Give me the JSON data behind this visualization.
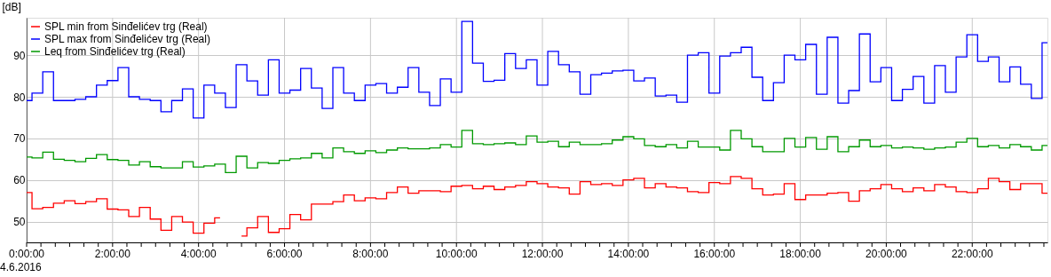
{
  "chart_data": {
    "type": "step",
    "ylabel": "[dB]",
    "x": [
      0,
      0.25,
      0.5,
      0.75,
      1,
      1.25,
      1.5,
      1.75,
      2,
      2.25,
      2.5,
      2.75,
      3,
      3.25,
      3.5,
      3.75,
      4,
      4.25,
      4.5,
      4.75,
      5,
      5.25,
      5.5,
      5.75,
      6,
      6.25,
      6.5,
      6.75,
      7,
      7.25,
      7.5,
      7.75,
      8,
      8.25,
      8.5,
      8.75,
      9,
      9.25,
      9.5,
      9.75,
      10,
      10.25,
      10.5,
      10.75,
      11,
      11.25,
      11.5,
      11.75,
      12,
      12.25,
      12.5,
      12.75,
      13,
      13.25,
      13.5,
      13.75,
      14,
      14.25,
      14.5,
      14.75,
      15,
      15.25,
      15.5,
      15.75,
      16,
      16.25,
      16.5,
      16.75,
      17,
      17.25,
      17.5,
      17.75,
      18,
      18.25,
      18.5,
      18.75,
      19,
      19.25,
      19.5,
      19.75,
      20,
      20.25,
      20.5,
      20.75,
      21,
      21.25,
      21.5,
      21.75,
      22,
      22.25,
      22.5,
      22.75,
      23,
      23.25,
      23.5,
      23.75
    ],
    "series": [
      {
        "name": "SPL min from Sinđelićev trg (Real)",
        "color": "#ff0000",
        "values": [
          57.0,
          53.1,
          53.4,
          54.4,
          55.0,
          54.3,
          54.8,
          55.5,
          53.0,
          52.8,
          51.2,
          53.4,
          50.6,
          47.9,
          51.2,
          49.9,
          47.2,
          49.6,
          50.9,
          null,
          46.5,
          48.5,
          51.2,
          47.4,
          48.3,
          51.7,
          50.4,
          54.2,
          54.2,
          54.8,
          56.4,
          55.0,
          55.7,
          55.5,
          57.0,
          58.3,
          56.8,
          57.4,
          57.4,
          57.2,
          58.5,
          58.7,
          57.9,
          58.5,
          57.7,
          58.3,
          58.7,
          59.6,
          59.1,
          58.3,
          58.1,
          56.6,
          59.6,
          58.9,
          59.1,
          58.7,
          60.0,
          60.4,
          58.1,
          59.1,
          58.3,
          58.1,
          57.2,
          57.0,
          59.4,
          59.1,
          60.8,
          60.4,
          57.9,
          56.4,
          56.6,
          59.1,
          55.3,
          56.4,
          56.4,
          56.8,
          57.0,
          54.9,
          57.4,
          57.9,
          58.9,
          57.9,
          57.2,
          58.1,
          57.4,
          58.9,
          58.3,
          57.2,
          57.0,
          57.9,
          60.4,
          59.6,
          57.7,
          59.1,
          59.1,
          56.8
        ]
      },
      {
        "name": "SPL max from Sinđelićev trg (Real)",
        "color": "#0000ff",
        "values": [
          79.1,
          80.9,
          86.0,
          79.1,
          79.1,
          79.4,
          80.0,
          82.8,
          83.9,
          87.0,
          80.0,
          79.4,
          79.1,
          76.4,
          79.1,
          81.9,
          74.9,
          82.8,
          80.9,
          77.4,
          87.7,
          83.8,
          80.4,
          88.9,
          80.9,
          81.6,
          86.8,
          82.1,
          77.2,
          87.0,
          80.9,
          79.1,
          82.8,
          83.2,
          80.9,
          82.3,
          87.0,
          81.1,
          77.9,
          84.3,
          81.1,
          98.1,
          88.1,
          83.7,
          84.0,
          90.4,
          86.8,
          88.9,
          82.8,
          90.9,
          87.7,
          86.0,
          80.6,
          85.3,
          85.7,
          86.2,
          86.4,
          83.8,
          84.5,
          80.2,
          80.4,
          78.7,
          90.0,
          90.6,
          80.9,
          89.8,
          90.6,
          91.9,
          84.7,
          79.1,
          83.4,
          90.0,
          88.9,
          92.6,
          80.6,
          94.3,
          78.5,
          81.5,
          95.1,
          83.6,
          87.0,
          79.1,
          81.8,
          84.9,
          78.5,
          87.5,
          81.1,
          89.6,
          94.9,
          88.5,
          89.6,
          83.6,
          87.2,
          83.0,
          79.6,
          93.0
        ]
      },
      {
        "name": "Leq from Sinđelićev trg (Real)",
        "color": "#009900",
        "values": [
          65.5,
          65.3,
          66.7,
          65.0,
          64.7,
          64.4,
          65.2,
          66.1,
          64.9,
          64.7,
          63.6,
          64.4,
          63.2,
          62.9,
          62.9,
          64.4,
          63.1,
          63.4,
          63.8,
          61.8,
          65.7,
          62.9,
          64.2,
          64.0,
          64.7,
          65.1,
          65.3,
          66.4,
          65.3,
          67.7,
          66.8,
          66.4,
          67.0,
          66.6,
          67.2,
          67.7,
          67.5,
          67.5,
          67.7,
          68.5,
          67.9,
          71.9,
          68.7,
          68.5,
          68.7,
          68.9,
          68.5,
          70.6,
          69.1,
          69.3,
          68.0,
          69.1,
          68.5,
          68.5,
          68.7,
          69.6,
          70.4,
          69.9,
          68.3,
          68.0,
          68.5,
          67.7,
          69.3,
          67.9,
          67.9,
          67.2,
          71.9,
          69.9,
          68.0,
          66.8,
          66.8,
          70.0,
          67.9,
          70.2,
          67.4,
          70.4,
          66.8,
          68.0,
          69.6,
          68.0,
          68.3,
          67.7,
          67.9,
          67.7,
          67.4,
          67.7,
          67.9,
          69.1,
          70.0,
          68.0,
          68.3,
          67.7,
          68.5,
          68.0,
          67.2,
          68.3
        ]
      }
    ],
    "xlim": [
      0,
      23.75
    ],
    "xticks": [
      {
        "value": 0,
        "label": "0:00:00"
      },
      {
        "value": 0.333,
        "label": null
      },
      {
        "value": 0.667,
        "label": null
      },
      {
        "value": 1,
        "label": null
      },
      {
        "value": 1.333,
        "label": null
      },
      {
        "value": 1.667,
        "label": null
      },
      {
        "value": 2,
        "label": "2:00:00"
      },
      {
        "value": 2.333,
        "label": null
      },
      {
        "value": 2.667,
        "label": null
      },
      {
        "value": 3,
        "label": null
      },
      {
        "value": 3.333,
        "label": null
      },
      {
        "value": 3.667,
        "label": null
      },
      {
        "value": 4,
        "label": "4:00:00"
      },
      {
        "value": 4.333,
        "label": null
      },
      {
        "value": 4.667,
        "label": null
      },
      {
        "value": 5,
        "label": null
      },
      {
        "value": 5.333,
        "label": null
      },
      {
        "value": 5.667,
        "label": null
      },
      {
        "value": 6,
        "label": "6:00:00"
      },
      {
        "value": 6.333,
        "label": null
      },
      {
        "value": 6.667,
        "label": null
      },
      {
        "value": 7,
        "label": null
      },
      {
        "value": 7.333,
        "label": null
      },
      {
        "value": 7.667,
        "label": null
      },
      {
        "value": 8,
        "label": "8:00:00"
      },
      {
        "value": 8.333,
        "label": null
      },
      {
        "value": 8.667,
        "label": null
      },
      {
        "value": 9,
        "label": null
      },
      {
        "value": 9.333,
        "label": null
      },
      {
        "value": 9.667,
        "label": null
      },
      {
        "value": 10,
        "label": "10:00:00"
      },
      {
        "value": 10.333,
        "label": null
      },
      {
        "value": 10.667,
        "label": null
      },
      {
        "value": 11,
        "label": null
      },
      {
        "value": 11.333,
        "label": null
      },
      {
        "value": 11.667,
        "label": null
      },
      {
        "value": 12,
        "label": "12:00:00"
      },
      {
        "value": 12.333,
        "label": null
      },
      {
        "value": 12.667,
        "label": null
      },
      {
        "value": 13,
        "label": null
      },
      {
        "value": 13.333,
        "label": null
      },
      {
        "value": 13.667,
        "label": null
      },
      {
        "value": 14,
        "label": "14:00:00"
      },
      {
        "value": 14.333,
        "label": null
      },
      {
        "value": 14.667,
        "label": null
      },
      {
        "value": 15,
        "label": null
      },
      {
        "value": 15.333,
        "label": null
      },
      {
        "value": 15.667,
        "label": null
      },
      {
        "value": 16,
        "label": "16:00:00"
      },
      {
        "value": 16.333,
        "label": null
      },
      {
        "value": 16.667,
        "label": null
      },
      {
        "value": 17,
        "label": null
      },
      {
        "value": 17.333,
        "label": null
      },
      {
        "value": 17.667,
        "label": null
      },
      {
        "value": 18,
        "label": "18:00:00"
      },
      {
        "value": 18.333,
        "label": null
      },
      {
        "value": 18.667,
        "label": null
      },
      {
        "value": 19,
        "label": null
      },
      {
        "value": 19.333,
        "label": null
      },
      {
        "value": 19.667,
        "label": null
      },
      {
        "value": 20,
        "label": "20:00:00"
      },
      {
        "value": 20.333,
        "label": null
      },
      {
        "value": 20.667,
        "label": null
      },
      {
        "value": 21,
        "label": null
      },
      {
        "value": 21.333,
        "label": null
      },
      {
        "value": 21.667,
        "label": null
      },
      {
        "value": 22,
        "label": "22:00:00"
      },
      {
        "value": 22.333,
        "label": null
      },
      {
        "value": 22.667,
        "label": null
      },
      {
        "value": 23,
        "label": null
      },
      {
        "value": 23.333,
        "label": null
      },
      {
        "value": 23.667,
        "label": null
      }
    ],
    "ylim": [
      45,
      99
    ],
    "yticks": [
      50,
      60,
      70,
      80,
      90
    ],
    "grid": true,
    "legend": "top left",
    "annotations": [
      "4.6.2016"
    ]
  }
}
